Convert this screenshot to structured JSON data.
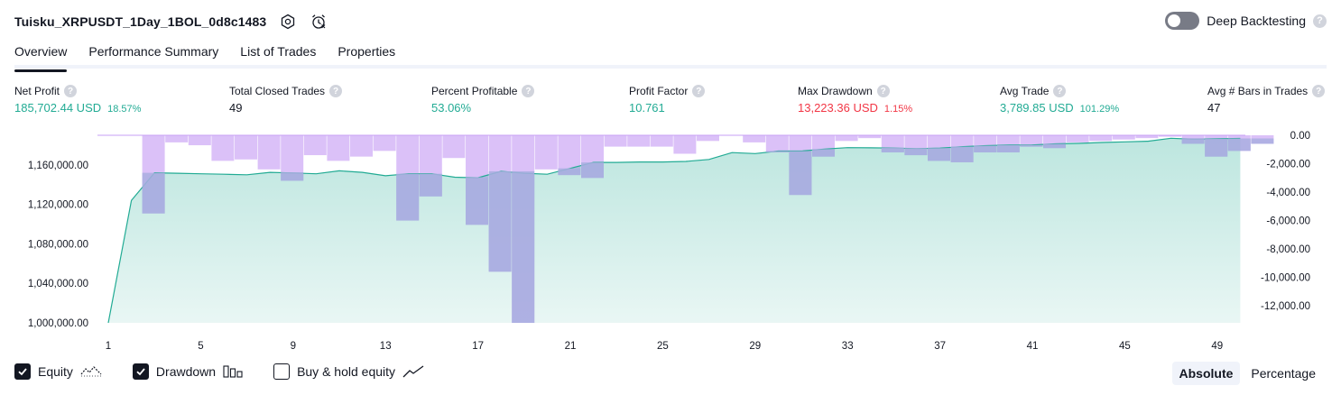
{
  "header": {
    "strategy_name": "Tuisku_XRPUSDT_1Day_1BOL_0d8c1483",
    "settings_icon": "settings-hex-icon",
    "alert_icon": "alarm-clock-icon",
    "deep_backtesting_label": "Deep Backtesting",
    "deep_backtesting_enabled": false,
    "help_glyph": "?"
  },
  "tabs": [
    {
      "label": "Overview",
      "active": true
    },
    {
      "label": "Performance Summary",
      "active": false
    },
    {
      "label": "List of Trades",
      "active": false
    },
    {
      "label": "Properties",
      "active": false
    }
  ],
  "stats": {
    "net_profit": {
      "label": "Net Profit",
      "value": "185,702.44 USD",
      "pct": "18.57%"
    },
    "total_closed_trades": {
      "label": "Total Closed Trades",
      "value": "49"
    },
    "percent_profitable": {
      "label": "Percent Profitable",
      "value": "53.06%"
    },
    "profit_factor": {
      "label": "Profit Factor",
      "value": "10.761"
    },
    "max_drawdown": {
      "label": "Max Drawdown",
      "value": "13,223.36 USD",
      "pct": "1.15%"
    },
    "avg_trade": {
      "label": "Avg Trade",
      "value": "3,789.85 USD",
      "pct": "101.29%"
    },
    "avg_bars": {
      "label": "Avg # Bars in Trades",
      "value": "47"
    }
  },
  "chart_data": {
    "type": "area",
    "x": [
      1,
      2,
      3,
      4,
      5,
      6,
      7,
      8,
      9,
      10,
      11,
      12,
      13,
      14,
      15,
      16,
      17,
      18,
      19,
      20,
      21,
      22,
      23,
      24,
      25,
      26,
      27,
      28,
      29,
      30,
      31,
      32,
      33,
      34,
      35,
      36,
      37,
      38,
      39,
      40,
      41,
      42,
      43,
      44,
      45,
      46,
      47,
      48,
      49,
      50
    ],
    "x_tick_labels": [
      "1",
      "5",
      "9",
      "13",
      "17",
      "21",
      "25",
      "29",
      "33",
      "37",
      "41",
      "45",
      "49"
    ],
    "equity": [
      1000000,
      1124000,
      1152000,
      1151500,
      1151000,
      1150500,
      1150000,
      1152500,
      1151800,
      1151000,
      1154000,
      1152500,
      1149000,
      1151000,
      1151000,
      1147500,
      1147000,
      1153500,
      1151500,
      1150500,
      1156500,
      1162500,
      1162500,
      1163000,
      1163000,
      1163500,
      1165500,
      1172500,
      1171500,
      1174000,
      1174000,
      1176000,
      1177500,
      1177300,
      1177000,
      1176500,
      1177000,
      1178500,
      1179500,
      1180000,
      1180200,
      1181300,
      1181800,
      1182700,
      1183300,
      1184000,
      1187000,
      1186000,
      1186500,
      1186800
    ],
    "drawdown": [
      0,
      -5500,
      -500,
      -700,
      -1800,
      -1700,
      -2400,
      -3200,
      -1400,
      -1800,
      -1500,
      -1100,
      -6000,
      -4300,
      -1600,
      -6300,
      -9600,
      -13200,
      -2400,
      -2800,
      -3000,
      -800,
      -800,
      -800,
      -1300,
      -400,
      0,
      -500,
      -1200,
      -4200,
      -1500,
      -400,
      -200,
      -1200,
      -1400,
      -1800,
      -1900,
      -1200,
      -1200,
      -800,
      -900,
      -500,
      -400,
      -300,
      -200,
      -100,
      -600,
      -1500,
      -1100,
      -600
    ],
    "equity_axis": {
      "ticks": [
        1000000,
        1040000,
        1080000,
        1120000,
        1160000
      ],
      "labels": [
        "1,000,000.00",
        "1,040,000.00",
        "1,080,000.00",
        "1,120,000.00",
        "1,160,000.00"
      ],
      "range": [
        1000000,
        1190000
      ]
    },
    "drawdown_axis": {
      "ticks": [
        0,
        -2000,
        -4000,
        -6000,
        -8000,
        -10000,
        -12000
      ],
      "labels": [
        "0.00",
        "-2,000.00",
        "-4,000.00",
        "-6,000.00",
        "-8,000.00",
        "-10,000.00",
        "-12,000.00"
      ],
      "range": [
        -13200,
        0
      ]
    },
    "colors": {
      "equity_line": "#22ab94",
      "equity_fill": "#22ab94",
      "drawdown": "#c79ff5",
      "overlap": "#a9aee0"
    }
  },
  "legend": {
    "equity": {
      "label": "Equity",
      "checked": true
    },
    "drawdown": {
      "label": "Drawdown",
      "checked": true
    },
    "buy_hold": {
      "label": "Buy & hold equity",
      "checked": false
    }
  },
  "view_mode": {
    "absolute": "Absolute",
    "percentage": "Percentage",
    "selected": "Absolute"
  }
}
